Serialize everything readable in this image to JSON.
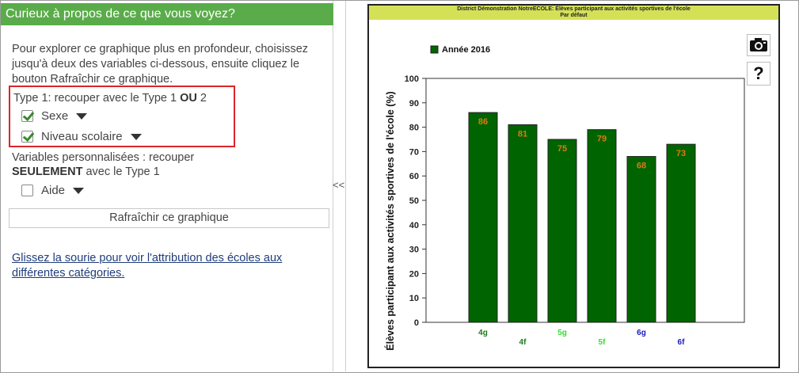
{
  "panel": {
    "header": "Curieux à propos de ce que vous voyez?",
    "intro": "Pour explorer ce graphique plus en profondeur, choisissez jusqu'à deux des variables ci-dessous, ensuite cliquez le bouton Rafraîchir ce graphique.",
    "type1_prefix": "Type 1: recouper avec le Type 1 ",
    "type1_bold": "OU",
    "type1_suffix": " 2",
    "options": [
      {
        "label": "Sexe",
        "checked": true
      },
      {
        "label": "Niveau scolaire",
        "checked": true
      }
    ],
    "custom_prefix": "Variables personnalisées : recouper ",
    "custom_bold": "SEULEMENT",
    "custom_suffix": " avec le Type 1",
    "custom_options": [
      {
        "label": "Aide",
        "checked": false
      }
    ],
    "refresh_label": "Rafraîchir ce graphique",
    "hover_link": "Glissez la sourie pour voir l'attribution des écoles aux différentes catégories.",
    "collapse_label": "<<"
  },
  "chart_data": {
    "type": "bar",
    "title": "District Démonstration NotreECOLE: Élèves participant aux activités sportives de l'école",
    "subtitle": "Par défaut",
    "ylabel": "Élèves participant aux activités sportives de l'école (%)",
    "xlabel": "",
    "ylim": [
      0,
      100
    ],
    "yticks": [
      0,
      10,
      20,
      30,
      40,
      50,
      60,
      70,
      80,
      90,
      100
    ],
    "grid": false,
    "legend_position": "top-left",
    "categories": [
      "4g",
      "4f",
      "5g",
      "5f",
      "6g",
      "6f"
    ],
    "category_colors": [
      "#1b7a1b",
      "#1b7a1b",
      "#33dd33",
      "#33dd33",
      "#1a1ab8",
      "#1a1ab8"
    ],
    "series": [
      {
        "name": "Année 2016",
        "values": [
          86,
          81,
          75,
          79,
          68,
          73
        ],
        "color": "#006400"
      }
    ],
    "label_color": "#e07a10"
  }
}
